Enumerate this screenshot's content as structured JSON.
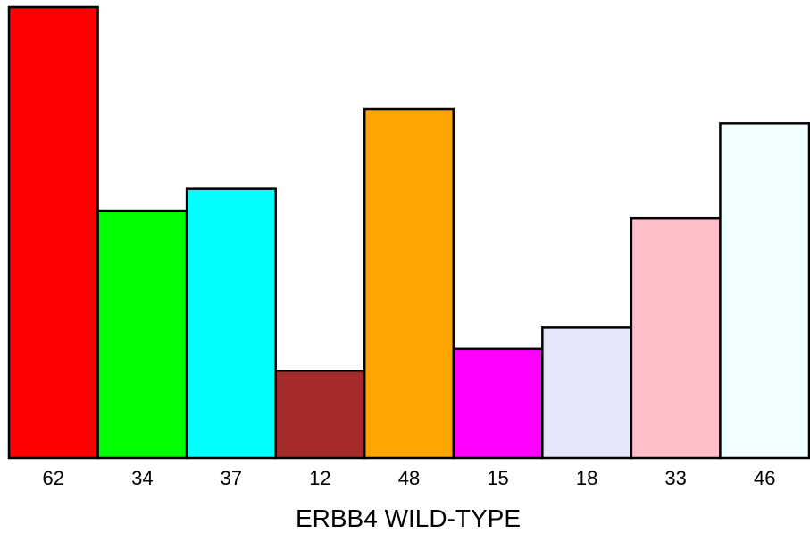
{
  "chart_data": {
    "type": "bar",
    "categories": [
      "62",
      "34",
      "37",
      "12",
      "48",
      "15",
      "18",
      "33",
      "46"
    ],
    "values": [
      62,
      34,
      37,
      12,
      48,
      15,
      18,
      33,
      46
    ],
    "colors": [
      "#ff0000",
      "#00ff00",
      "#00ffff",
      "#a52a2a",
      "#ffa500",
      "#ff00ff",
      "#e6e6fa",
      "#ffc0cb",
      "#f0ffff"
    ],
    "title": "",
    "xlabel": "ERBB4 WILD-TYPE",
    "ylabel": "",
    "ylim": [
      0,
      62
    ],
    "grid": false,
    "legend": "none",
    "bar_gap": 0,
    "bar_outline_color": "#000000"
  }
}
